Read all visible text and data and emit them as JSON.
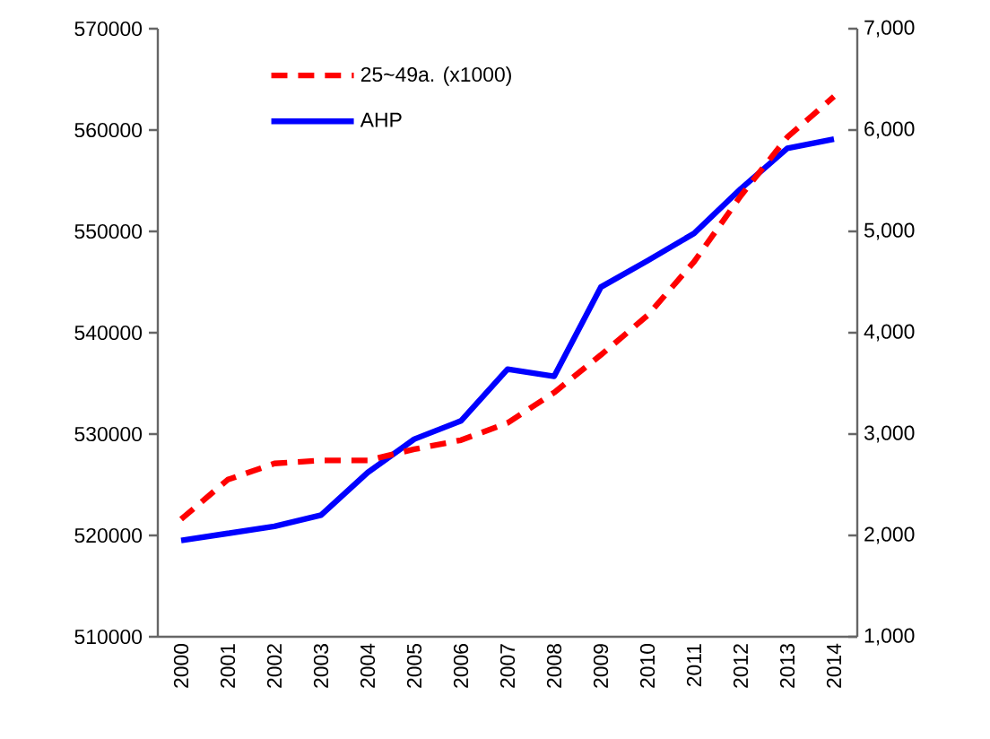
{
  "chart_data": {
    "type": "line",
    "categories": [
      "2000",
      "2001",
      "2002",
      "2003",
      "2004",
      "2005",
      "2006",
      "2007",
      "2008",
      "2009",
      "2010",
      "2011",
      "2012",
      "2013",
      "2014"
    ],
    "series": [
      {
        "name": "25~49a. (x1000)",
        "color": "#ff0000",
        "line_style": "dashed",
        "values": [
          521600,
          525500,
          527100,
          527400,
          527400,
          528500,
          529400,
          531100,
          534100,
          537800,
          541700,
          547000,
          553500,
          559300,
          563300
        ]
      },
      {
        "name": "AHP",
        "color": "#0000ff",
        "line_style": "solid",
        "axis": "y2",
        "values": [
          1950,
          2020,
          2090,
          2200,
          2620,
          2950,
          3130,
          3640,
          3570,
          4450,
          4710,
          4980,
          5420,
          5820,
          5910
        ]
      }
    ],
    "ylim": [
      510000,
      570000
    ],
    "yticks": [
      510000,
      520000,
      530000,
      540000,
      550000,
      560000,
      570000
    ],
    "y2lim": [
      1000,
      7000
    ],
    "y2ticks": [
      {
        "value": 1000,
        "label": "1,000"
      },
      {
        "value": 2000,
        "label": "2,000"
      },
      {
        "value": 3000,
        "label": "3,000"
      },
      {
        "value": 4000,
        "label": "4,000"
      },
      {
        "value": 5000,
        "label": "5,000"
      },
      {
        "value": 6000,
        "label": "6,000"
      },
      {
        "value": 7000,
        "label": "7,000"
      }
    ],
    "legend": "top",
    "grid": false,
    "marker": "none"
  }
}
